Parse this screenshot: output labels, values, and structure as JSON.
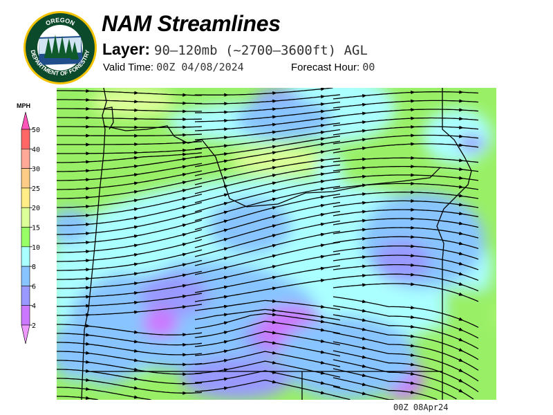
{
  "logo": {
    "top_text": "OREGON",
    "bottom_text": "DEPARTMENT OF FORESTRY"
  },
  "header": {
    "title": "NAM Streamlines",
    "layer_label": "Layer:",
    "layer_value": "90–120mb (~2700–3600ft) AGL",
    "valid_label": "Valid Time:",
    "valid_value": "00Z 04/08/2024",
    "forecast_label": "Forecast Hour:",
    "forecast_value": "00"
  },
  "legend": {
    "unit": "MPH",
    "labels": [
      "50",
      "40",
      "30",
      "25",
      "20",
      "15",
      "10",
      "8",
      "6",
      "4",
      "2"
    ],
    "colors": {
      "above": "#ff55bb",
      "bands": [
        "#ff6666",
        "#ffaa99",
        "#ffcc88",
        "#ffee88",
        "#ddff99",
        "#99ff66",
        "#aaffff",
        "#88c4ff",
        "#9999ff",
        "#cc77ff"
      ],
      "below": "#ee99ff"
    }
  },
  "map": {
    "colors": {
      "green": "#99f066",
      "cyan": "#aaffff",
      "blue": "#88c4ff",
      "periwinkle": "#9999ff",
      "purple": "#cc77ff",
      "yellowgreen": "#ddff99",
      "line": "#000000"
    }
  },
  "footer": {
    "timestamp": "00Z 08Apr24"
  }
}
